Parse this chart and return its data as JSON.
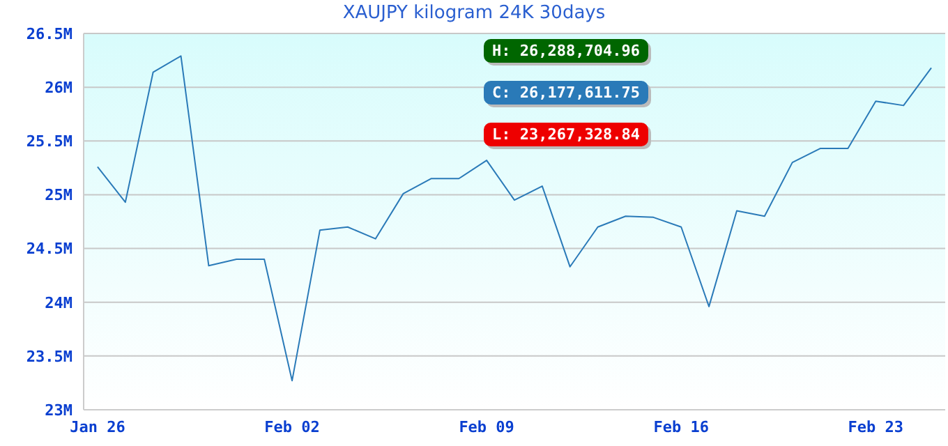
{
  "chart_data": {
    "type": "line",
    "title": "XAUJPY kilogram 24K 30days",
    "x": [
      "--01-26",
      "--01-27",
      "--01-28",
      "--01-29",
      "--01-30",
      "--01-31",
      "--02-01",
      "--02-02",
      "--02-03",
      "--02-04",
      "--02-05",
      "--02-06",
      "--02-07",
      "--02-08",
      "--02-09",
      "--02-10",
      "--02-11",
      "--02-12",
      "--02-13",
      "--02-14",
      "--02-15",
      "--02-16",
      "--02-17",
      "--02-18",
      "--02-19",
      "--02-20",
      "--02-21",
      "--02-22",
      "--02-23",
      "--02-24",
      "--02-25"
    ],
    "series": [
      {
        "color": "#2a7ab8",
        "values": [
          25.26,
          24.93,
          26.14,
          26.29,
          24.34,
          24.4,
          24.4,
          23.27,
          24.67,
          24.7,
          24.59,
          25.01,
          25.15,
          25.15,
          25.32,
          24.95,
          25.08,
          24.33,
          24.7,
          24.8,
          24.79,
          24.7,
          23.96,
          24.85,
          24.8,
          25.3,
          25.43,
          25.43,
          25.87,
          25.83,
          26.18
        ]
      }
    ],
    "xlim": [
      "--01-25T12:00",
      "--02-25T12:00"
    ],
    "xticks": [
      {
        "value": "--01-26",
        "label": "Jan 26"
      },
      {
        "value": "--02-02",
        "label": "Feb 02"
      },
      {
        "value": "--02-09",
        "label": "Feb 09"
      },
      {
        "value": "--02-16",
        "label": "Feb 16"
      },
      {
        "value": "--02-23",
        "label": "Feb 23"
      }
    ],
    "ylim": [
      23,
      26.5
    ],
    "yticks": [
      {
        "value": 23,
        "label": "23M"
      },
      {
        "value": 23.5,
        "label": "23.5M"
      },
      {
        "value": 24,
        "label": "24M"
      },
      {
        "value": 24.5,
        "label": "24.5M"
      },
      {
        "value": 25,
        "label": "25M"
      },
      {
        "value": 25.5,
        "label": "25.5M"
      },
      {
        "value": 26,
        "label": "26M"
      },
      {
        "value": 26.5,
        "label": "26.5M"
      }
    ],
    "annotations": [
      "H: 26,288,704.96",
      "C: 26,177,611.75",
      "L: 23,267,328.84"
    ],
    "grid": "y",
    "legend": false,
    "marker": "none",
    "line_style": "solid"
  }
}
